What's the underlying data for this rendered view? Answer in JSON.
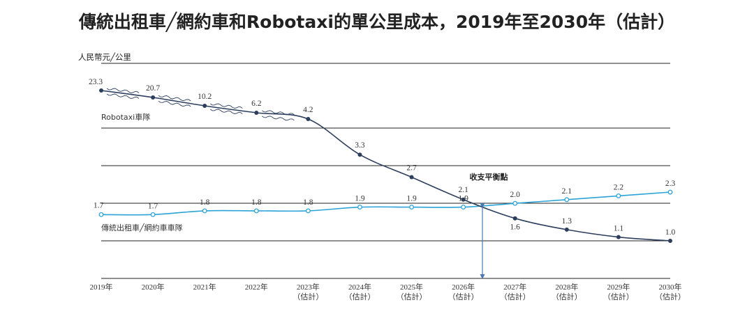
{
  "title": "傳統出租車╱網約車和Robotaxi的單公里成本，2019年至2030年（估計）",
  "colors": {
    "robotaxi": "#2c3e5c",
    "traditional": "#2aa3d8",
    "grid": "#222222",
    "arrow": "#4a78b0"
  },
  "chart_data": {
    "type": "line",
    "title": "傳統出租車╱網約車和Robotaxi的單公里成本，2019年至2030年（估計）",
    "ylabel": "人民幣元╱公里",
    "xlabel": "",
    "ylim": [
      0,
      25
    ],
    "grid": true,
    "x": [
      {
        "year": "2019年",
        "note": ""
      },
      {
        "year": "2020年",
        "note": ""
      },
      {
        "year": "2021年",
        "note": ""
      },
      {
        "year": "2022年",
        "note": ""
      },
      {
        "year": "2023年",
        "note": "（估計）"
      },
      {
        "year": "2024年",
        "note": "（估計）"
      },
      {
        "year": "2025年",
        "note": "（估計）"
      },
      {
        "year": "2026年",
        "note": "（估計）"
      },
      {
        "year": "2027年",
        "note": "（估計）"
      },
      {
        "year": "2028年",
        "note": "（估計）"
      },
      {
        "year": "2029年",
        "note": "（估計）"
      },
      {
        "year": "2030年",
        "note": "（估計）"
      }
    ],
    "series": [
      {
        "name": "Robotaxi車隊",
        "values": [
          23.3,
          20.7,
          10.2,
          6.2,
          4.2,
          3.3,
          2.7,
          2.1,
          1.6,
          1.3,
          1.1,
          1.0
        ]
      },
      {
        "name": "傳統出租車╱網約車車隊",
        "values": [
          1.7,
          1.7,
          1.8,
          1.8,
          1.8,
          1.9,
          1.9,
          1.9,
          2.0,
          2.1,
          2.2,
          2.3
        ]
      }
    ],
    "annotations": [
      {
        "text": "收支平衡點",
        "between": [
          "2026年",
          "2027年"
        ]
      }
    ]
  }
}
